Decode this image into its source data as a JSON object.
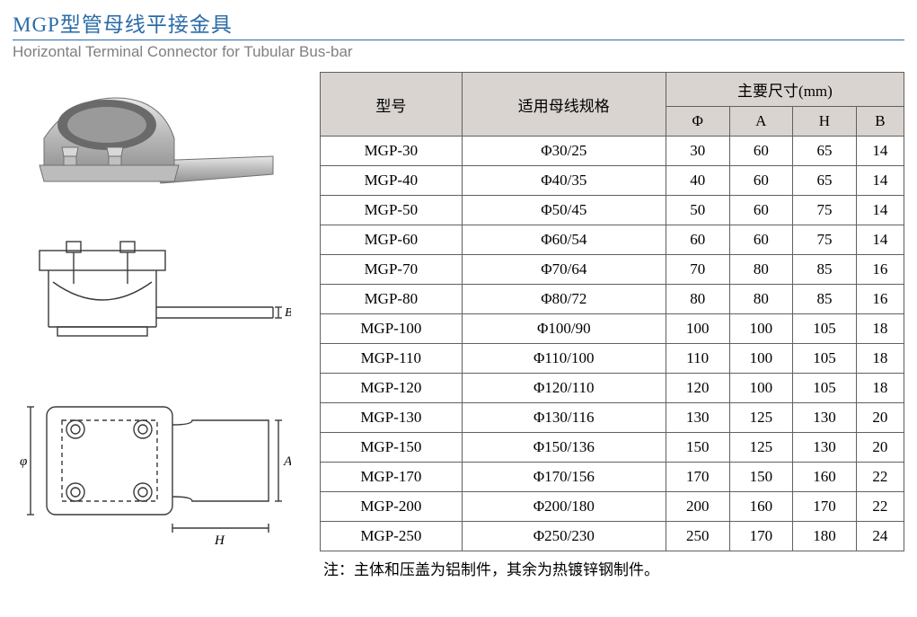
{
  "header": {
    "title_cn": "MGP型管母线平接金具",
    "title_en": "Horizontal Terminal Connector for Tubular Bus-bar"
  },
  "table": {
    "header_model": "型号",
    "header_spec": "适用母线规格",
    "header_dims": "主要尺寸(mm)",
    "header_phi": "Φ",
    "header_a": "A",
    "header_h": "H",
    "header_b": "B",
    "rows": [
      {
        "model": "MGP-30",
        "spec": "Φ30/25",
        "phi": "30",
        "a": "60",
        "h": "65",
        "b": "14"
      },
      {
        "model": "MGP-40",
        "spec": "Φ40/35",
        "phi": "40",
        "a": "60",
        "h": "65",
        "b": "14"
      },
      {
        "model": "MGP-50",
        "spec": "Φ50/45",
        "phi": "50",
        "a": "60",
        "h": "75",
        "b": "14"
      },
      {
        "model": "MGP-60",
        "spec": "Φ60/54",
        "phi": "60",
        "a": "60",
        "h": "75",
        "b": "14"
      },
      {
        "model": "MGP-70",
        "spec": "Φ70/64",
        "phi": "70",
        "a": "80",
        "h": "85",
        "b": "16"
      },
      {
        "model": "MGP-80",
        "spec": "Φ80/72",
        "phi": "80",
        "a": "80",
        "h": "85",
        "b": "16"
      },
      {
        "model": "MGP-100",
        "spec": "Φ100/90",
        "phi": "100",
        "a": "100",
        "h": "105",
        "b": "18"
      },
      {
        "model": "MGP-110",
        "spec": "Φ110/100",
        "phi": "110",
        "a": "100",
        "h": "105",
        "b": "18"
      },
      {
        "model": "MGP-120",
        "spec": "Φ120/110",
        "phi": "120",
        "a": "100",
        "h": "105",
        "b": "18"
      },
      {
        "model": "MGP-130",
        "spec": "Φ130/116",
        "phi": "130",
        "a": "125",
        "h": "130",
        "b": "20"
      },
      {
        "model": "MGP-150",
        "spec": "Φ150/136",
        "phi": "150",
        "a": "125",
        "h": "130",
        "b": "20"
      },
      {
        "model": "MGP-170",
        "spec": "Φ170/156",
        "phi": "170",
        "a": "150",
        "h": "160",
        "b": "22"
      },
      {
        "model": "MGP-200",
        "spec": "Φ200/180",
        "phi": "200",
        "a": "160",
        "h": "170",
        "b": "22"
      },
      {
        "model": "MGP-250",
        "spec": "Φ250/230",
        "phi": "250",
        "a": "170",
        "h": "180",
        "b": "24"
      }
    ]
  },
  "note": "注：主体和压盖为铝制件，其余为热镀锌钢制件。",
  "diagram_labels": {
    "phi": "φ",
    "a": "A",
    "h": "H",
    "b": "B"
  },
  "colors": {
    "title": "#2a6ba8",
    "subtitle": "#808080",
    "header_bg": "#d9d4d0",
    "border": "#606060",
    "text": "#000000",
    "diagram_stroke": "#3a3a3a"
  }
}
